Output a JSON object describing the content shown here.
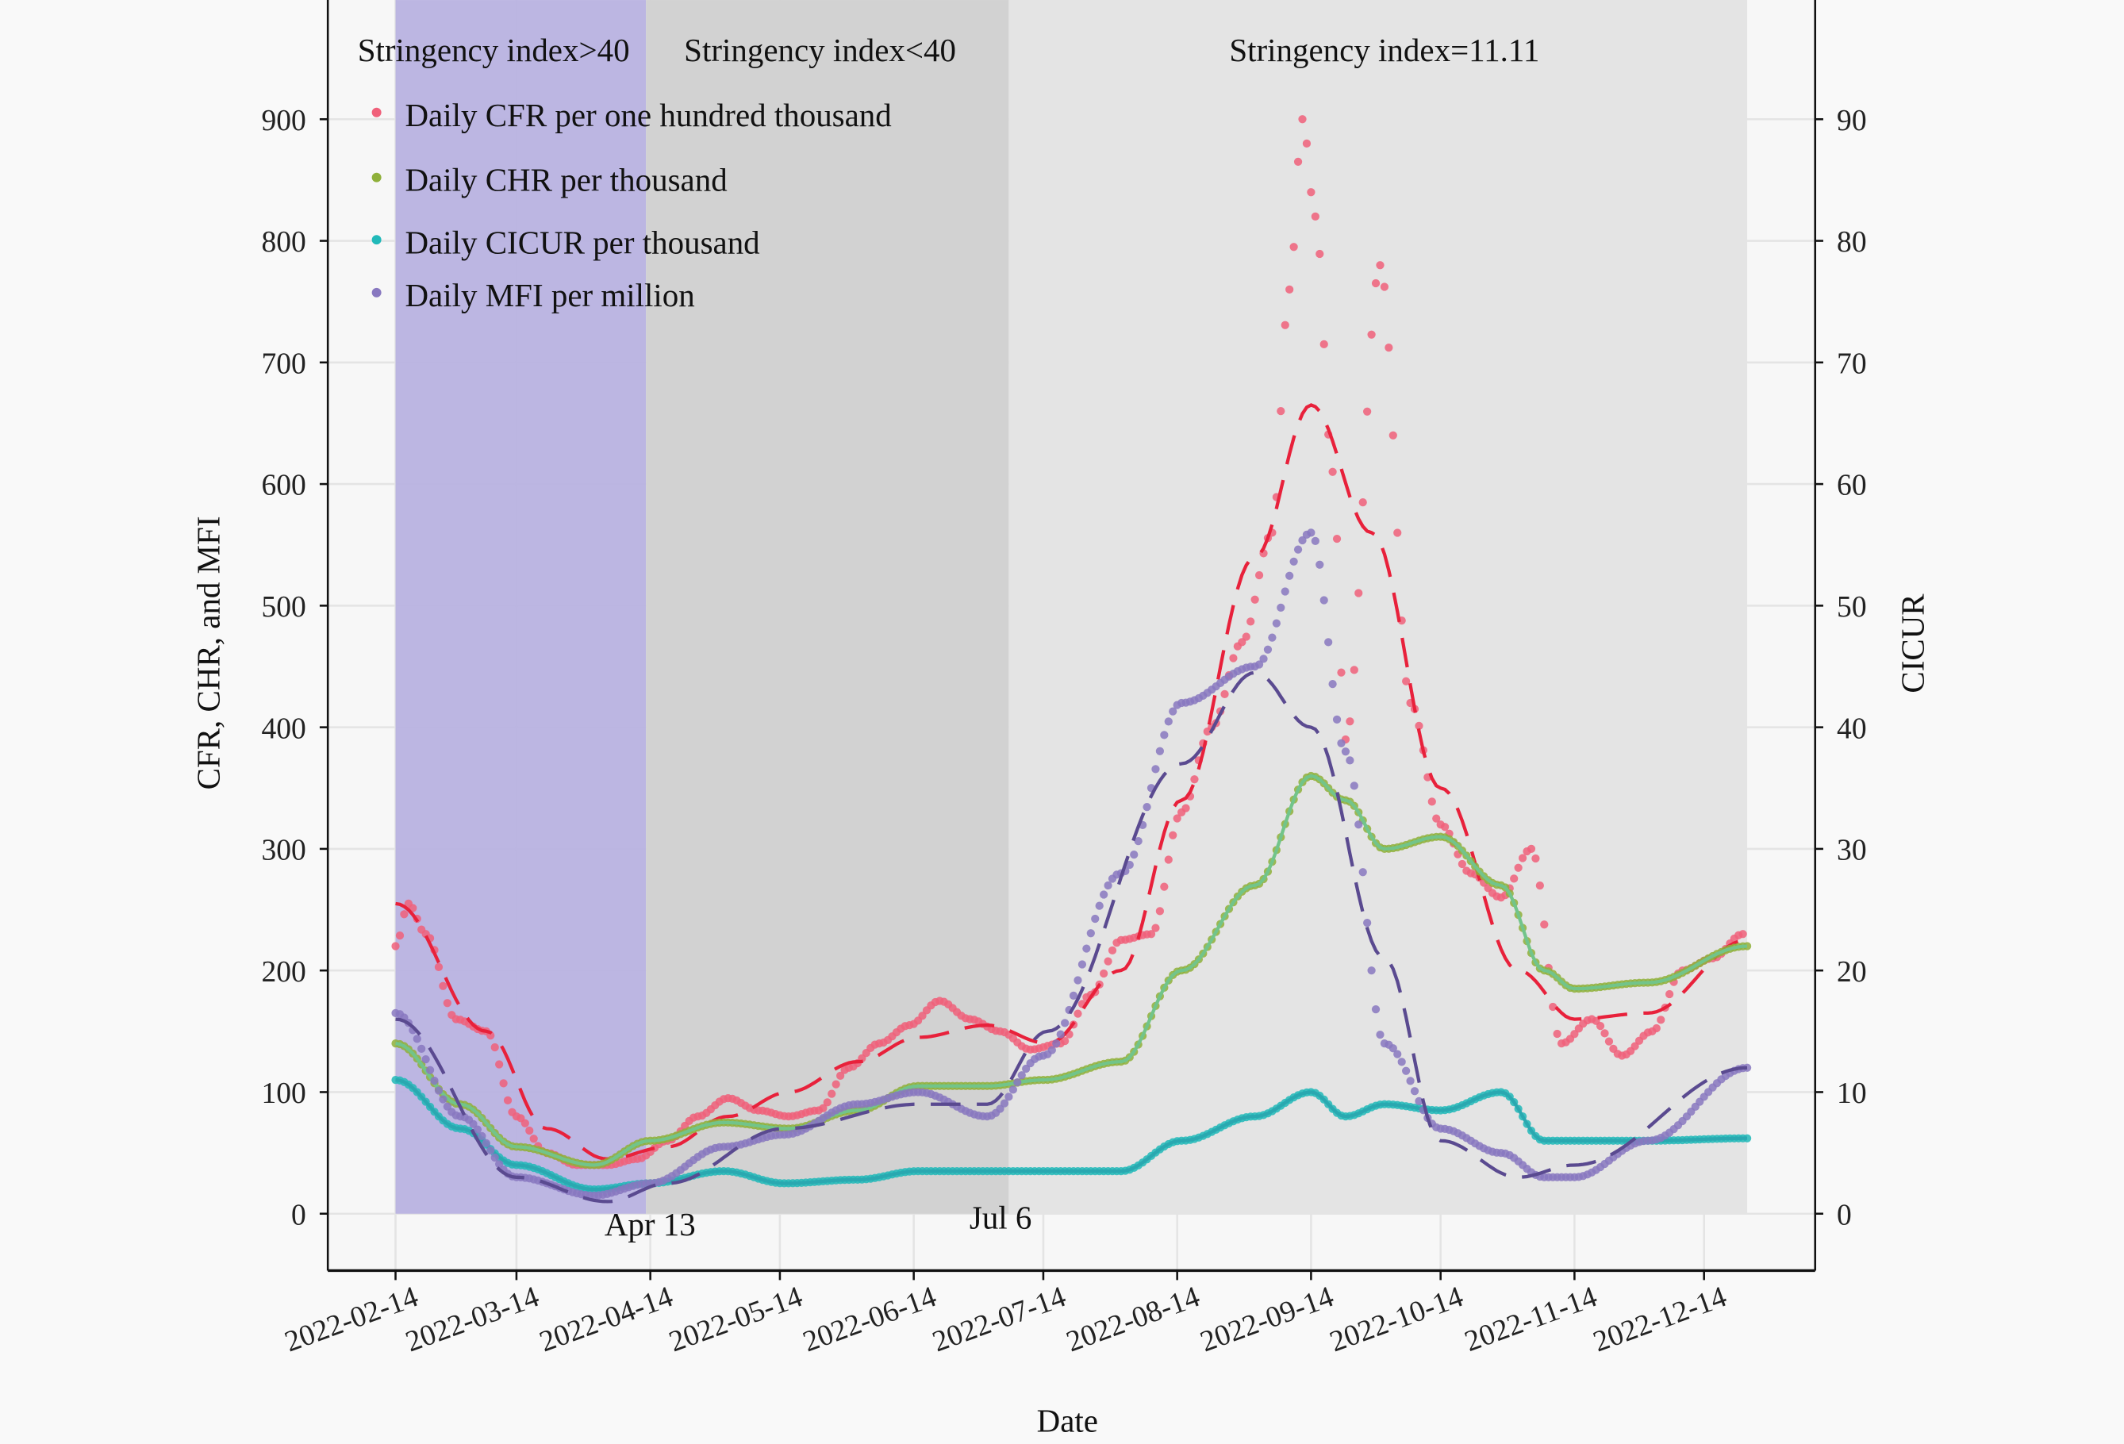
{
  "chart_data": {
    "type": "scatter",
    "xlabel": "Date",
    "ylabel": "CFR, CHR, and MFI",
    "ylabel_right": "CICUR",
    "ylim": [
      0,
      900
    ],
    "ylim_right": [
      0,
      90
    ],
    "yticks": [
      0,
      100,
      200,
      300,
      400,
      500,
      600,
      700,
      800,
      900
    ],
    "yticks_right": [
      0,
      10,
      20,
      30,
      40,
      50,
      60,
      70,
      80,
      90
    ],
    "xticks": [
      "2022-02-14",
      "2022-03-14",
      "2022-04-14",
      "2022-05-14",
      "2022-06-14",
      "2022-07-14",
      "2022-08-14",
      "2022-09-14",
      "2022-10-14",
      "2022-11-14",
      "2022-12-14"
    ],
    "grid": true,
    "legend_position": "top-left",
    "regions": [
      {
        "label": "Stringency index>40",
        "start": "2022-02-14",
        "end": "2022-04-13",
        "color": "#b8b2e0"
      },
      {
        "label": "Stringency index<40",
        "start": "2022-04-13",
        "end": "2022-07-06",
        "color": "#d2d2d2"
      },
      {
        "label": "Stringency index=11.11",
        "start": "2022-07-06",
        "end": "2022-12-24",
        "color": "#e4e4e4"
      }
    ],
    "annotations": [
      {
        "text": "Apr 13",
        "date": "2022-04-13"
      },
      {
        "text": "Jul 6",
        "date": "2022-07-06"
      }
    ],
    "series": [
      {
        "name": "Daily CFR per one hundred thousand",
        "axis": "left",
        "color": "#f0607a",
        "fit_color": "#e8213b",
        "points": [
          [
            "2022-02-14",
            220
          ],
          [
            "2022-02-17",
            255
          ],
          [
            "2022-02-21",
            230
          ],
          [
            "2022-02-28",
            160
          ],
          [
            "2022-03-07",
            150
          ],
          [
            "2022-03-14",
            80
          ],
          [
            "2022-03-21",
            50
          ],
          [
            "2022-03-28",
            40
          ],
          [
            "2022-04-04",
            40
          ],
          [
            "2022-04-11",
            45
          ],
          [
            "2022-04-18",
            60
          ],
          [
            "2022-04-25",
            80
          ],
          [
            "2022-05-02",
            95
          ],
          [
            "2022-05-09",
            85
          ],
          [
            "2022-05-16",
            80
          ],
          [
            "2022-05-23",
            85
          ],
          [
            "2022-05-30",
            120
          ],
          [
            "2022-06-06",
            140
          ],
          [
            "2022-06-13",
            155
          ],
          [
            "2022-06-20",
            175
          ],
          [
            "2022-06-27",
            160
          ],
          [
            "2022-07-04",
            150
          ],
          [
            "2022-07-11",
            135
          ],
          [
            "2022-07-18",
            140
          ],
          [
            "2022-07-25",
            180
          ],
          [
            "2022-08-01",
            225
          ],
          [
            "2022-08-08",
            230
          ],
          [
            "2022-08-15",
            330
          ],
          [
            "2022-08-22",
            400
          ],
          [
            "2022-08-29",
            470
          ],
          [
            "2022-09-05",
            560
          ],
          [
            "2022-09-09",
            760
          ],
          [
            "2022-09-12",
            900
          ],
          [
            "2022-09-15",
            820
          ],
          [
            "2022-09-19",
            610
          ],
          [
            "2022-09-22",
            390
          ],
          [
            "2022-09-30",
            780
          ],
          [
            "2022-10-07",
            420
          ],
          [
            "2022-10-14",
            320
          ],
          [
            "2022-10-21",
            280
          ],
          [
            "2022-10-28",
            260
          ],
          [
            "2022-11-04",
            300
          ],
          [
            "2022-11-11",
            140
          ],
          [
            "2022-11-18",
            160
          ],
          [
            "2022-11-25",
            130
          ],
          [
            "2022-12-02",
            150
          ],
          [
            "2022-12-09",
            200
          ],
          [
            "2022-12-16",
            210
          ],
          [
            "2022-12-23",
            230
          ]
        ],
        "fit": [
          [
            "2022-02-14",
            255
          ],
          [
            "2022-03-07",
            150
          ],
          [
            "2022-03-21",
            70
          ],
          [
            "2022-04-04",
            45
          ],
          [
            "2022-04-18",
            55
          ],
          [
            "2022-05-02",
            80
          ],
          [
            "2022-05-16",
            100
          ],
          [
            "2022-06-01",
            125
          ],
          [
            "2022-06-15",
            145
          ],
          [
            "2022-07-01",
            155
          ],
          [
            "2022-07-15",
            140
          ],
          [
            "2022-08-01",
            200
          ],
          [
            "2022-08-15",
            340
          ],
          [
            "2022-09-01",
            540
          ],
          [
            "2022-09-14",
            665
          ],
          [
            "2022-09-28",
            560
          ],
          [
            "2022-10-14",
            350
          ],
          [
            "2022-11-01",
            200
          ],
          [
            "2022-11-14",
            160
          ],
          [
            "2022-12-01",
            165
          ],
          [
            "2022-12-24",
            225
          ]
        ]
      },
      {
        "name": "Daily CHR per thousand",
        "axis": "left",
        "color": "#8fb03a",
        "fit_color": "#72c48a",
        "points": [
          [
            "2022-02-14",
            140
          ],
          [
            "2022-03-01",
            90
          ],
          [
            "2022-03-14",
            55
          ],
          [
            "2022-04-01",
            40
          ],
          [
            "2022-04-14",
            60
          ],
          [
            "2022-05-01",
            75
          ],
          [
            "2022-05-16",
            70
          ],
          [
            "2022-06-01",
            85
          ],
          [
            "2022-06-15",
            105
          ],
          [
            "2022-07-01",
            105
          ],
          [
            "2022-07-14",
            110
          ],
          [
            "2022-08-01",
            125
          ],
          [
            "2022-08-15",
            200
          ],
          [
            "2022-09-01",
            270
          ],
          [
            "2022-09-14",
            360
          ],
          [
            "2022-09-22",
            340
          ],
          [
            "2022-10-01",
            300
          ],
          [
            "2022-10-14",
            310
          ],
          [
            "2022-10-28",
            270
          ],
          [
            "2022-11-07",
            200
          ],
          [
            "2022-11-14",
            185
          ],
          [
            "2022-12-01",
            190
          ],
          [
            "2022-12-24",
            220
          ]
        ]
      },
      {
        "name": "Daily CICUR per thousand",
        "axis": "right",
        "color": "#21b9b9",
        "fit_color": "#2aa8b0",
        "points": [
          [
            "2022-02-14",
            11
          ],
          [
            "2022-03-01",
            7
          ],
          [
            "2022-03-14",
            4
          ],
          [
            "2022-04-01",
            2
          ],
          [
            "2022-04-14",
            2.5
          ],
          [
            "2022-05-01",
            3.5
          ],
          [
            "2022-05-15",
            2.5
          ],
          [
            "2022-06-01",
            2.8
          ],
          [
            "2022-06-15",
            3.5
          ],
          [
            "2022-07-01",
            3.5
          ],
          [
            "2022-07-14",
            3.5
          ],
          [
            "2022-08-01",
            3.5
          ],
          [
            "2022-08-15",
            6
          ],
          [
            "2022-09-01",
            8
          ],
          [
            "2022-09-14",
            10
          ],
          [
            "2022-09-22",
            8
          ],
          [
            "2022-10-01",
            9
          ],
          [
            "2022-10-14",
            8.5
          ],
          [
            "2022-10-28",
            10
          ],
          [
            "2022-11-07",
            6
          ],
          [
            "2022-11-14",
            6
          ],
          [
            "2022-12-01",
            6
          ],
          [
            "2022-12-24",
            6.2
          ]
        ]
      },
      {
        "name": "Daily MFI per million",
        "axis": "left",
        "color": "#8878c0",
        "fit_color": "#5a4a90",
        "points": [
          [
            "2022-02-14",
            165
          ],
          [
            "2022-03-01",
            80
          ],
          [
            "2022-03-14",
            30
          ],
          [
            "2022-04-01",
            15
          ],
          [
            "2022-04-14",
            25
          ],
          [
            "2022-05-01",
            55
          ],
          [
            "2022-05-15",
            65
          ],
          [
            "2022-06-01",
            90
          ],
          [
            "2022-06-15",
            100
          ],
          [
            "2022-07-01",
            80
          ],
          [
            "2022-07-14",
            130
          ],
          [
            "2022-08-01",
            280
          ],
          [
            "2022-08-15",
            420
          ],
          [
            "2022-09-01",
            450
          ],
          [
            "2022-09-14",
            560
          ],
          [
            "2022-09-22",
            380
          ],
          [
            "2022-10-01",
            140
          ],
          [
            "2022-10-14",
            70
          ],
          [
            "2022-10-28",
            50
          ],
          [
            "2022-11-07",
            30
          ],
          [
            "2022-11-14",
            30
          ],
          [
            "2022-12-01",
            60
          ],
          [
            "2022-12-24",
            120
          ]
        ],
        "fit": [
          [
            "2022-02-14",
            160
          ],
          [
            "2022-03-14",
            30
          ],
          [
            "2022-04-04",
            10
          ],
          [
            "2022-04-18",
            25
          ],
          [
            "2022-05-15",
            70
          ],
          [
            "2022-06-15",
            90
          ],
          [
            "2022-07-01",
            90
          ],
          [
            "2022-07-15",
            150
          ],
          [
            "2022-08-15",
            370
          ],
          [
            "2022-09-01",
            445
          ],
          [
            "2022-09-14",
            400
          ],
          [
            "2022-10-01",
            210
          ],
          [
            "2022-10-14",
            60
          ],
          [
            "2022-11-01",
            30
          ],
          [
            "2022-11-14",
            40
          ],
          [
            "2022-12-24",
            120
          ]
        ]
      }
    ]
  }
}
